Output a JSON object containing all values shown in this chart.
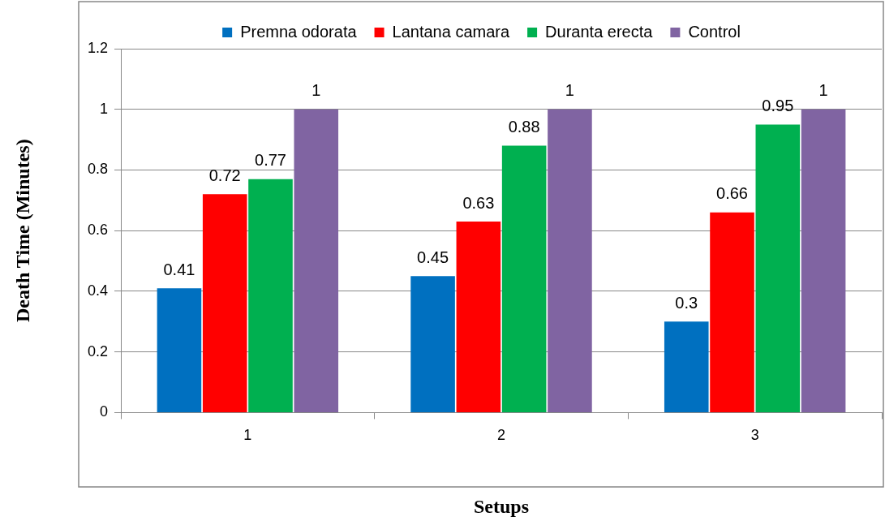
{
  "chart_data": {
    "type": "bar",
    "xlabel": "Setups",
    "ylabel": "Death Time (Minutes)",
    "categories": [
      "1",
      "2",
      "3"
    ],
    "series": [
      {
        "name": "Premna odorata",
        "color": "#0070c0",
        "values": [
          0.41,
          0.45,
          0.3
        ]
      },
      {
        "name": "Lantana camara",
        "color": "#ff0000",
        "values": [
          0.72,
          0.63,
          0.66
        ]
      },
      {
        "name": "Duranta erecta",
        "color": "#00b050",
        "values": [
          0.77,
          0.88,
          0.95
        ]
      },
      {
        "name": "Control",
        "color": "#8064a2",
        "values": [
          1,
          1,
          1
        ]
      }
    ],
    "ylim": [
      0,
      1.2
    ],
    "yticks": [
      0,
      0.2,
      0.4,
      0.6,
      0.8,
      1,
      1.2
    ],
    "grid": "y",
    "legend": "top",
    "data_labels": true
  }
}
